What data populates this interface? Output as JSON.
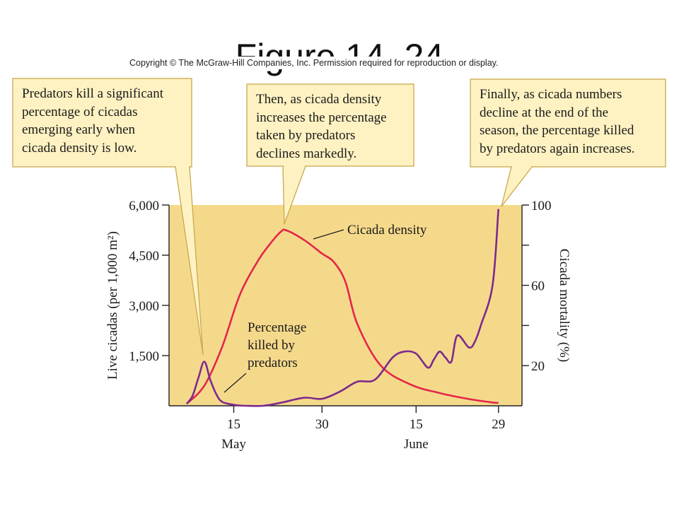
{
  "slide": {
    "title": "Figure 14. 24",
    "copyright": "Copyright © The McGraw-Hill Companies, Inc. Permission required for reproduction or display."
  },
  "callouts": [
    {
      "name": "callout-early",
      "lines": [
        "Predators kill a significant",
        "percentage of cicadas",
        "emerging early when",
        "cicada density is low."
      ]
    },
    {
      "name": "callout-middle",
      "lines": [
        "Then, as cicada density",
        "increases the percentage",
        "taken by predators",
        "declines markedly."
      ]
    },
    {
      "name": "callout-late",
      "lines": [
        "Finally, as cicada numbers",
        "decline at the end of the",
        "season, the percentage killed",
        "by predators again increases."
      ]
    }
  ],
  "colors": {
    "plot_bg": "#f5d98b",
    "callout_bg": "#fff2c2",
    "callout_border": "#c9a84e",
    "density_line": "#e3264a",
    "mortality_line": "#7c2a8c",
    "axis": "#222222"
  },
  "chart_data": {
    "type": "line",
    "x_ticks": [
      {
        "day": 15,
        "label": "15"
      },
      {
        "day": 30,
        "label": "30"
      },
      {
        "day": 46,
        "label": "15"
      },
      {
        "day": 60,
        "label": "29"
      }
    ],
    "x_month_labels": [
      {
        "day": 15,
        "label": "May"
      },
      {
        "day": 46,
        "label": "June"
      }
    ],
    "xlim": [
      4,
      64
    ],
    "y_left": {
      "label": "Live cicadas (per 1,000 m²)",
      "ylim": [
        0,
        6000
      ],
      "ticks": [
        {
          "value": 6000,
          "label": "6,000"
        },
        {
          "value": 4500,
          "label": "4,500"
        },
        {
          "value": 3000,
          "label": "3,000"
        },
        {
          "value": 1500,
          "label": "1,500"
        }
      ]
    },
    "y_right": {
      "label": "Cicada mortality (%)",
      "ylim": [
        0,
        100
      ],
      "ticks": [
        {
          "value": 100,
          "label": "100"
        },
        {
          "value": 80,
          "label": ""
        },
        {
          "value": 60,
          "label": "60"
        },
        {
          "value": 40,
          "label": ""
        },
        {
          "value": 20,
          "label": "20"
        }
      ]
    },
    "series": [
      {
        "name": "Cicada density",
        "axis": "left",
        "x": [
          7,
          10,
          13,
          16,
          19,
          21,
          23,
          24,
          27,
          30,
          32,
          34,
          36,
          40,
          45,
          50,
          55,
          59,
          60
        ],
        "values": [
          60,
          600,
          1750,
          3300,
          4300,
          4800,
          5200,
          5240,
          4950,
          4550,
          4300,
          3700,
          2450,
          1200,
          640,
          380,
          200,
          100,
          90
        ]
      },
      {
        "name": "Percentage killed by predators",
        "axis": "right",
        "x": [
          7,
          8,
          9,
          10,
          11,
          12,
          13,
          15,
          17,
          20,
          23,
          27,
          30,
          33,
          36,
          39,
          42,
          44,
          46,
          48,
          49,
          50,
          51,
          52,
          53,
          55,
          56,
          57,
          59,
          60
        ],
        "values": [
          1,
          5,
          14,
          22,
          13,
          6,
          2,
          0.5,
          0,
          0,
          1.5,
          4,
          3.5,
          7,
          12,
          13,
          24,
          27,
          26,
          19,
          23,
          27,
          24,
          22,
          35,
          29,
          32,
          40,
          60,
          98
        ]
      }
    ],
    "annotations": [
      {
        "text": "Cicada density",
        "points_to": "Cicada density"
      },
      {
        "lines": [
          "Percentage",
          "killed by",
          "predators"
        ],
        "points_to": "Percentage killed by predators"
      }
    ],
    "grid": false,
    "legend": "none"
  }
}
